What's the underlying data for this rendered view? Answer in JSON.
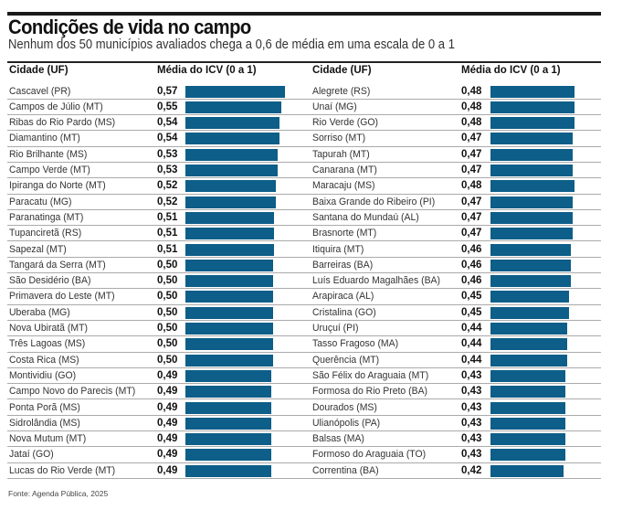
{
  "title": "Condições de vida no campo",
  "subtitle": "Nenhum dos 50 municípios avaliados chega a 0,6 de média em uma escala de 0 a 1",
  "source": "Fonte: Agenda Pública, 2025",
  "chart_data": {
    "type": "bar",
    "orientation": "horizontal",
    "title": "Condições de vida no campo",
    "headers": {
      "city": "Cidade (UF)",
      "value": "Média do ICV (0 a 1)"
    },
    "bar_color": "#0d5e88",
    "xlim": [
      0,
      1
    ],
    "columns": [
      {
        "categories": [
          "Cascavel (PR)",
          "Campos de Júlio (MT)",
          "Ribas do Rio Pardo (MS)",
          "Diamantino (MT)",
          "Rio Brilhante (MS)",
          "Campo Verde (MT)",
          "Ipiranga do Norte (MT)",
          "Paracatu (MG)",
          "Paranatinga (MT)",
          "Tupanciretã (RS)",
          "Sapezal (MT)",
          "Tangará da Serra (MT)",
          "São Desidério (BA)",
          "Primavera do Leste (MT)",
          "Uberaba (MG)",
          "Nova Ubiratã (MT)",
          "Três Lagoas (MS)",
          "Costa Rica (MS)",
          "Montividiu (GO)",
          "Campo Novo do Parecis (MT)",
          "Ponta Porã (MS)",
          "Sidrolândia (MS)",
          "Nova Mutum (MT)",
          "Jataí (GO)",
          "Lucas do Rio Verde (MT)"
        ],
        "values": [
          0.57,
          0.55,
          0.54,
          0.54,
          0.53,
          0.53,
          0.52,
          0.52,
          0.51,
          0.51,
          0.51,
          0.5,
          0.5,
          0.5,
          0.5,
          0.5,
          0.5,
          0.5,
          0.49,
          0.49,
          0.49,
          0.49,
          0.49,
          0.49,
          0.49
        ],
        "labels": [
          "0,57",
          "0,55",
          "0,54",
          "0,54",
          "0,53",
          "0,53",
          "0,52",
          "0,52",
          "0,51",
          "0,51",
          "0,51",
          "0,50",
          "0,50",
          "0,50",
          "0,50",
          "0,50",
          "0,50",
          "0,50",
          "0,49",
          "0,49",
          "0,49",
          "0,49",
          "0,49",
          "0,49",
          "0,49"
        ]
      },
      {
        "categories": [
          "Alegrete (RS)",
          "Unaí (MG)",
          "Rio Verde (GO)",
          "Sorriso (MT)",
          "Tapurah (MT)",
          "Canarana (MT)",
          "Maracaju (MS)",
          "Baixa Grande do Ribeiro (PI)",
          "Santana do Mundaú (AL)",
          "Brasnorte (MT)",
          "Itiquira (MT)",
          "Barreiras (BA)",
          "Luís Eduardo Magalhães (BA)",
          "Arapiraca (AL)",
          "Cristalina (GO)",
          "Uruçuí (PI)",
          "Tasso Fragoso (MA)",
          "Querência (MT)",
          "São Félix do Araguaia (MT)",
          "Formosa do Rio Preto (BA)",
          "Dourados (MS)",
          "Ulianópolis (PA)",
          "Balsas (MA)",
          "Formoso do Araguaia (TO)",
          "Correntina (BA)"
        ],
        "values": [
          0.48,
          0.48,
          0.48,
          0.47,
          0.47,
          0.47,
          0.48,
          0.47,
          0.47,
          0.47,
          0.46,
          0.46,
          0.46,
          0.45,
          0.45,
          0.44,
          0.44,
          0.44,
          0.43,
          0.43,
          0.43,
          0.43,
          0.43,
          0.43,
          0.42
        ],
        "labels": [
          "0,48",
          "0,48",
          "0,48",
          "0,47",
          "0,47",
          "0,47",
          "0,48",
          "0,47",
          "0,47",
          "0,47",
          "0,46",
          "0,46",
          "0,46",
          "0,45",
          "0,45",
          "0,44",
          "0,44",
          "0,44",
          "0,43",
          "0,43",
          "0,43",
          "0,43",
          "0,43",
          "0,43",
          "0,42"
        ]
      }
    ]
  }
}
